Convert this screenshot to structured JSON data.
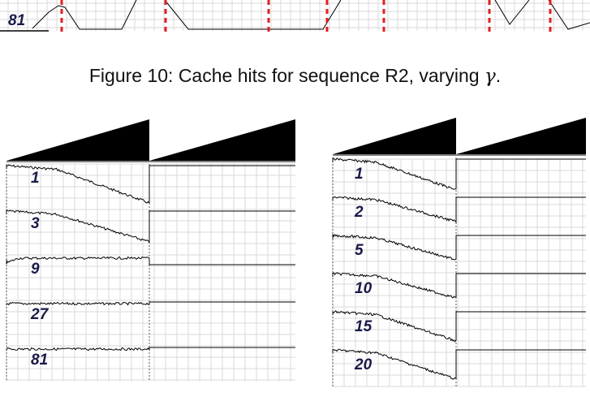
{
  "figure_top": {
    "row_label": "81",
    "marker_color": "#e02020"
  },
  "caption": {
    "prefix": "Figure 10: Cache hits for sequence R2, varying ",
    "symbol": "γ",
    "suffix": "."
  },
  "left_panel": {
    "traces": [
      {
        "label": "1"
      },
      {
        "label": "3"
      },
      {
        "label": "9"
      },
      {
        "label": "27"
      },
      {
        "label": "81"
      }
    ]
  },
  "right_panel": {
    "traces": [
      {
        "label": "1"
      },
      {
        "label": "2"
      },
      {
        "label": "5"
      },
      {
        "label": "10"
      },
      {
        "label": "15"
      },
      {
        "label": "20"
      }
    ]
  }
}
